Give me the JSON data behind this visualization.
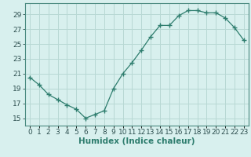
{
  "x": [
    0,
    1,
    2,
    3,
    4,
    5,
    6,
    7,
    8,
    9,
    10,
    11,
    12,
    13,
    14,
    15,
    16,
    17,
    18,
    19,
    20,
    21,
    22,
    23
  ],
  "y": [
    20.5,
    19.5,
    18.2,
    17.5,
    16.8,
    16.2,
    15.0,
    15.5,
    16.0,
    19.0,
    21.0,
    22.5,
    24.2,
    26.0,
    27.5,
    27.5,
    28.8,
    29.5,
    29.5,
    29.2,
    29.2,
    28.5,
    27.2,
    25.5
  ],
  "line_color": "#2e7d6e",
  "marker": "+",
  "marker_size": 4,
  "bg_color": "#d8f0ee",
  "grid_color": "#b8d8d4",
  "xlabel": "Humidex (Indice chaleur)",
  "xlabel_fontsize": 7.5,
  "tick_fontsize": 6.5,
  "xlim": [
    -0.5,
    23.5
  ],
  "ylim": [
    14,
    30.5
  ],
  "yticks": [
    15,
    17,
    19,
    21,
    23,
    25,
    27,
    29
  ],
  "xticks": [
    0,
    1,
    2,
    3,
    4,
    5,
    6,
    7,
    8,
    9,
    10,
    11,
    12,
    13,
    14,
    15,
    16,
    17,
    18,
    19,
    20,
    21,
    22,
    23
  ]
}
